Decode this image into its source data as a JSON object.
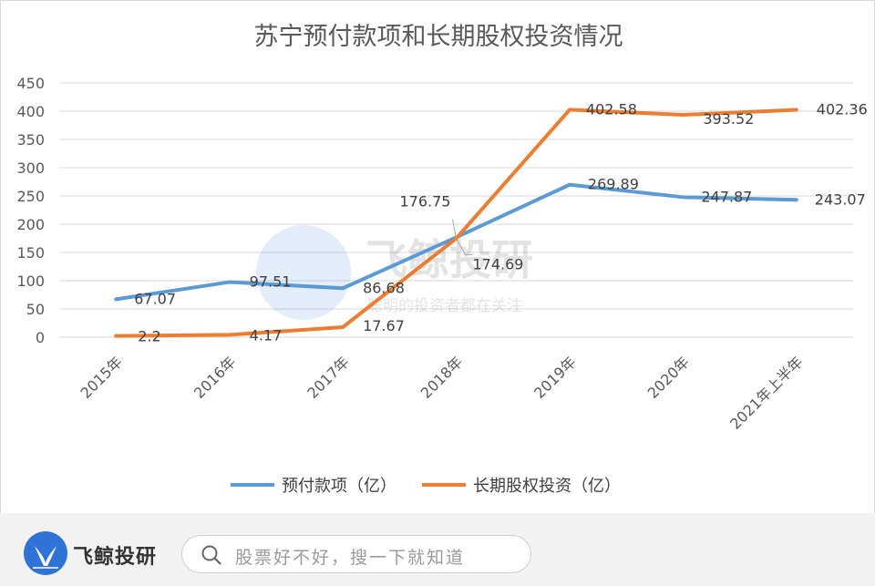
{
  "chart_data": {
    "type": "line",
    "title": "苏宁预付款项和长期股权投资情况",
    "categories": [
      "2015年",
      "2016年",
      "2017年",
      "2018年",
      "2019年",
      "2020年",
      "2021年上半年"
    ],
    "series": [
      {
        "name": "预付款项（亿）",
        "color": "#5b9bd5",
        "values": [
          67.07,
          97.51,
          86.68,
          176.75,
          269.89,
          247.87,
          243.07
        ]
      },
      {
        "name": "长期股权投资（亿）",
        "color": "#ed7d31",
        "values": [
          2.2,
          4.17,
          17.67,
          174.69,
          402.58,
          393.52,
          402.36
        ]
      }
    ],
    "data_labels": [
      [
        "67.07",
        "97.51",
        "86.68",
        "176.75",
        "269.89",
        "247.87",
        "243.07"
      ],
      [
        "2.2",
        "4.17",
        "17.67",
        "174.69",
        "402.58",
        "393.52",
        "402.36"
      ]
    ],
    "yticks": [
      "0",
      "50",
      "100",
      "150",
      "200",
      "250",
      "300",
      "350",
      "400",
      "450"
    ],
    "ylim": [
      0,
      450
    ],
    "grid": true,
    "legend": "bottom",
    "xlabel": "",
    "ylabel": ""
  },
  "watermark": {
    "brand": "飞鲸投研",
    "slogan": "聪明的投资者都在关注"
  },
  "footer": {
    "brand": "飞鲸投研",
    "search_placeholder": "股票好不好，搜一下就知道"
  }
}
